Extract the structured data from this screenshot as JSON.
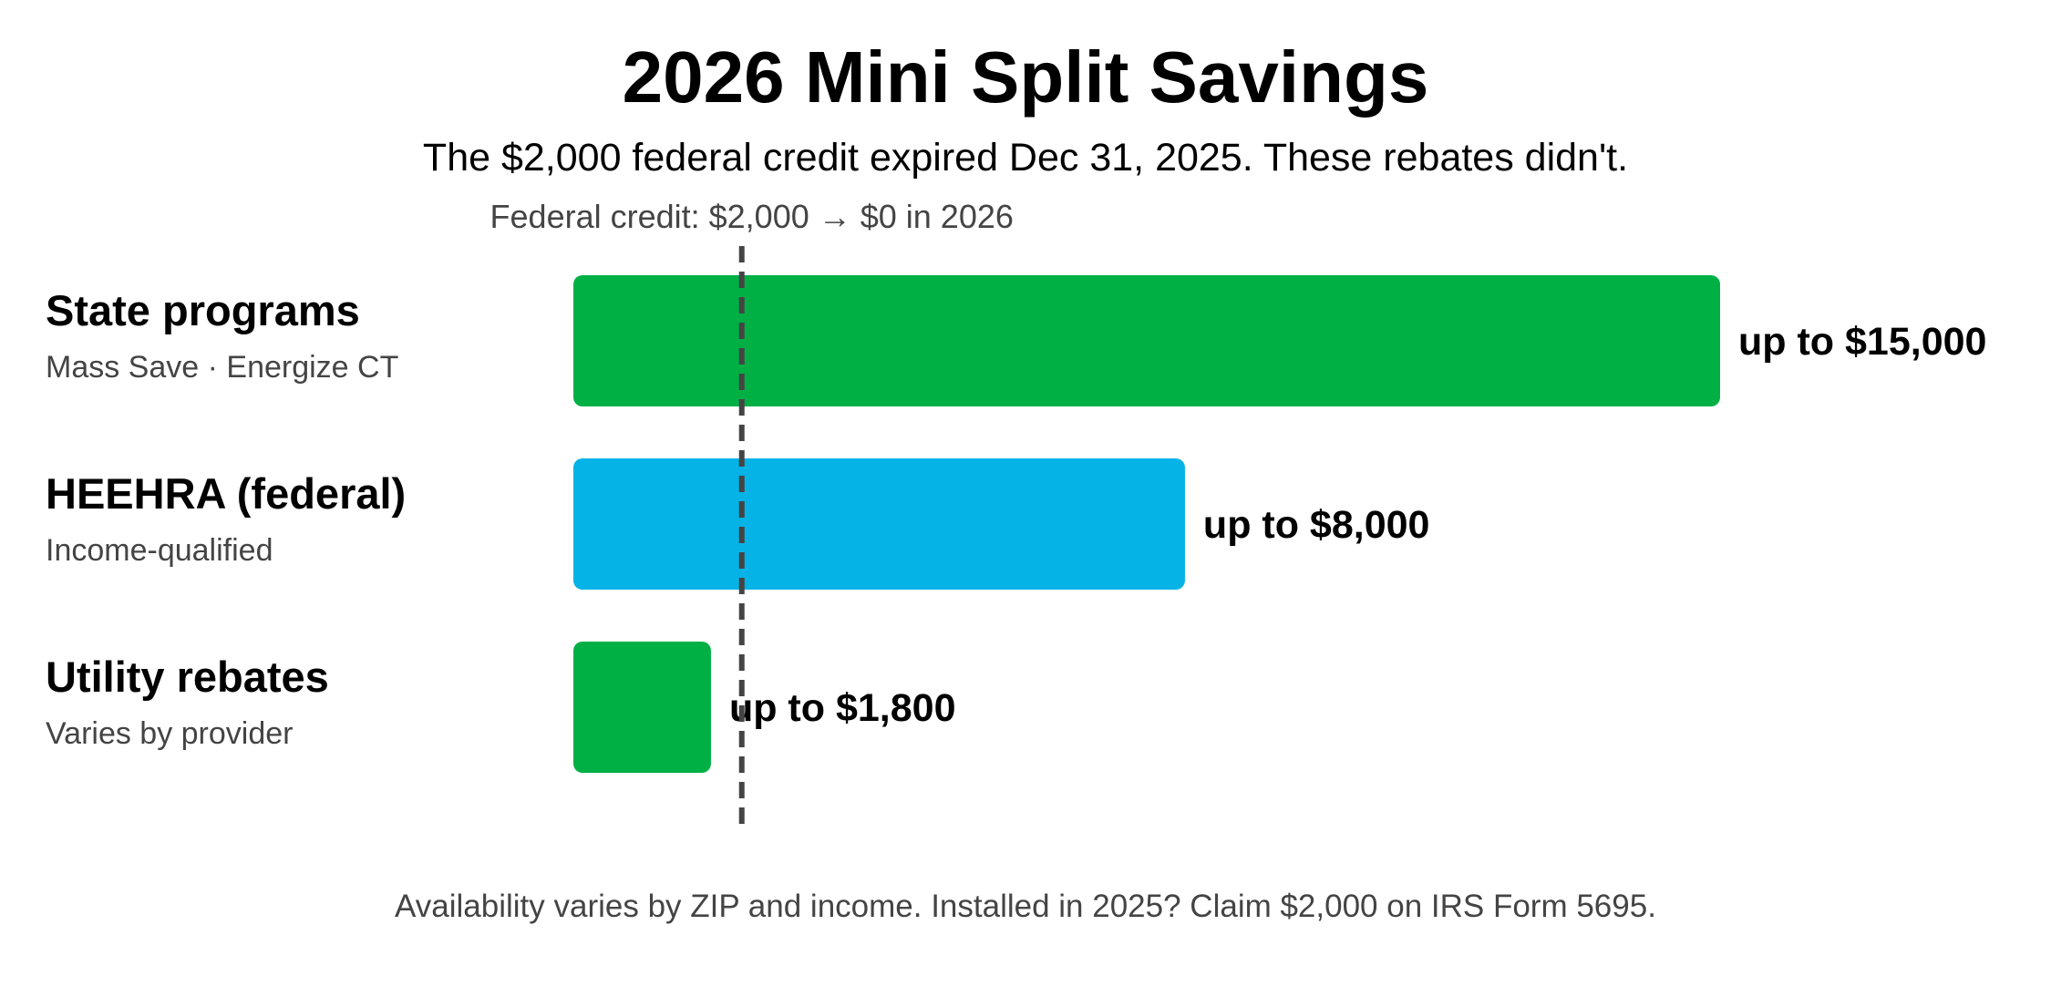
{
  "chart_data": {
    "type": "bar",
    "orientation": "horizontal",
    "title": "2026 Mini Split Savings",
    "subtitle": "The $2,000 federal credit expired Dec 31, 2025. These rebates didn't.",
    "categories": [
      {
        "label": "State programs",
        "sublabel": "Mass Save · Energize CT",
        "value": 15000,
        "value_label": "up to $15,000",
        "color": "#00b045"
      },
      {
        "label": "HEEHRA (federal)",
        "sublabel": "Income-qualified",
        "value": 8000,
        "value_label": "up to $8,000",
        "color": "#05b3e6"
      },
      {
        "label": "Utility rebates",
        "sublabel": "Varies by provider",
        "value": 1800,
        "value_label": "up to $1,800",
        "color": "#00b045"
      }
    ],
    "xlim": [
      0,
      15000
    ],
    "reference_line": {
      "value": 2000,
      "label": "Federal credit: $2,000 → $0 in 2026",
      "style": "dashed",
      "color": "#444444"
    },
    "footnote": "Availability varies by ZIP and income. Installed in 2025? Claim $2,000 on IRS Form 5695.",
    "grid": false,
    "legend": "none"
  }
}
